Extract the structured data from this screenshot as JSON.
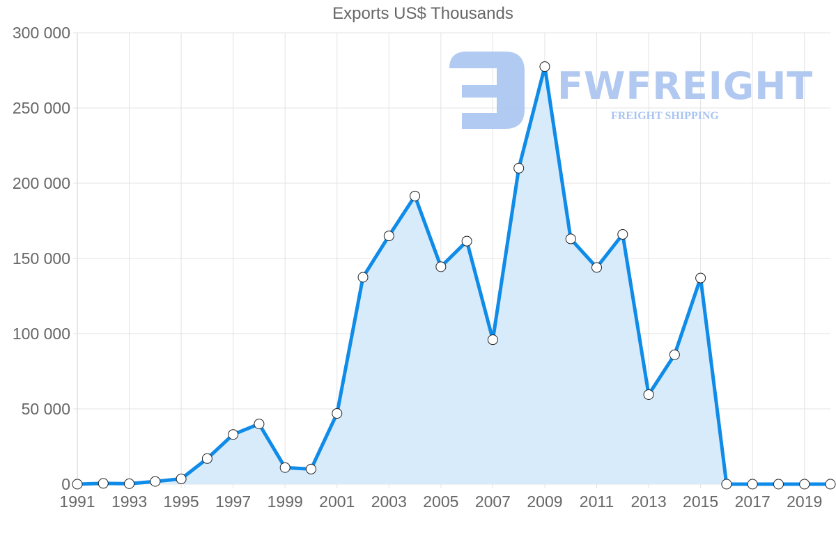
{
  "chart_data": {
    "type": "area",
    "title": "Exports US$ Thousands",
    "xlabel": "",
    "ylabel": "",
    "x": [
      1991,
      1992,
      1993,
      1994,
      1995,
      1996,
      1997,
      1998,
      1999,
      2000,
      2001,
      2002,
      2003,
      2004,
      2005,
      2006,
      2007,
      2008,
      2009,
      2010,
      2011,
      2012,
      2013,
      2014,
      2015,
      2016,
      2017,
      2018,
      2019,
      2020
    ],
    "x_tick_labels": [
      "1991",
      "1993",
      "1995",
      "1997",
      "1999",
      "2001",
      "2003",
      "2005",
      "2007",
      "2009",
      "2011",
      "2013",
      "2015",
      "2017",
      "2019"
    ],
    "series": [
      {
        "name": "Exports US$ Thousands",
        "color": "#0f8be8",
        "fill": "#d8ebfb",
        "values": [
          0,
          500,
          300,
          1800,
          3500,
          17000,
          33000,
          40000,
          11000,
          10000,
          47000,
          137500,
          165000,
          191500,
          144500,
          161500,
          96000,
          210000,
          277500,
          163000,
          144000,
          166000,
          59500,
          86000,
          137000,
          0,
          0,
          0,
          0,
          0
        ]
      }
    ],
    "ylim": [
      0,
      300000
    ],
    "y_ticks": [
      0,
      50000,
      100000,
      150000,
      200000,
      250000,
      300000
    ],
    "y_tick_labels": [
      "0",
      "50 000",
      "100 000",
      "150 000",
      "200 000",
      "250 000",
      "300 000"
    ],
    "grid": true,
    "legend": "none"
  },
  "watermark": {
    "brand": "FWFREIGHT",
    "tagline": "FREIGHT SHIPPING"
  }
}
